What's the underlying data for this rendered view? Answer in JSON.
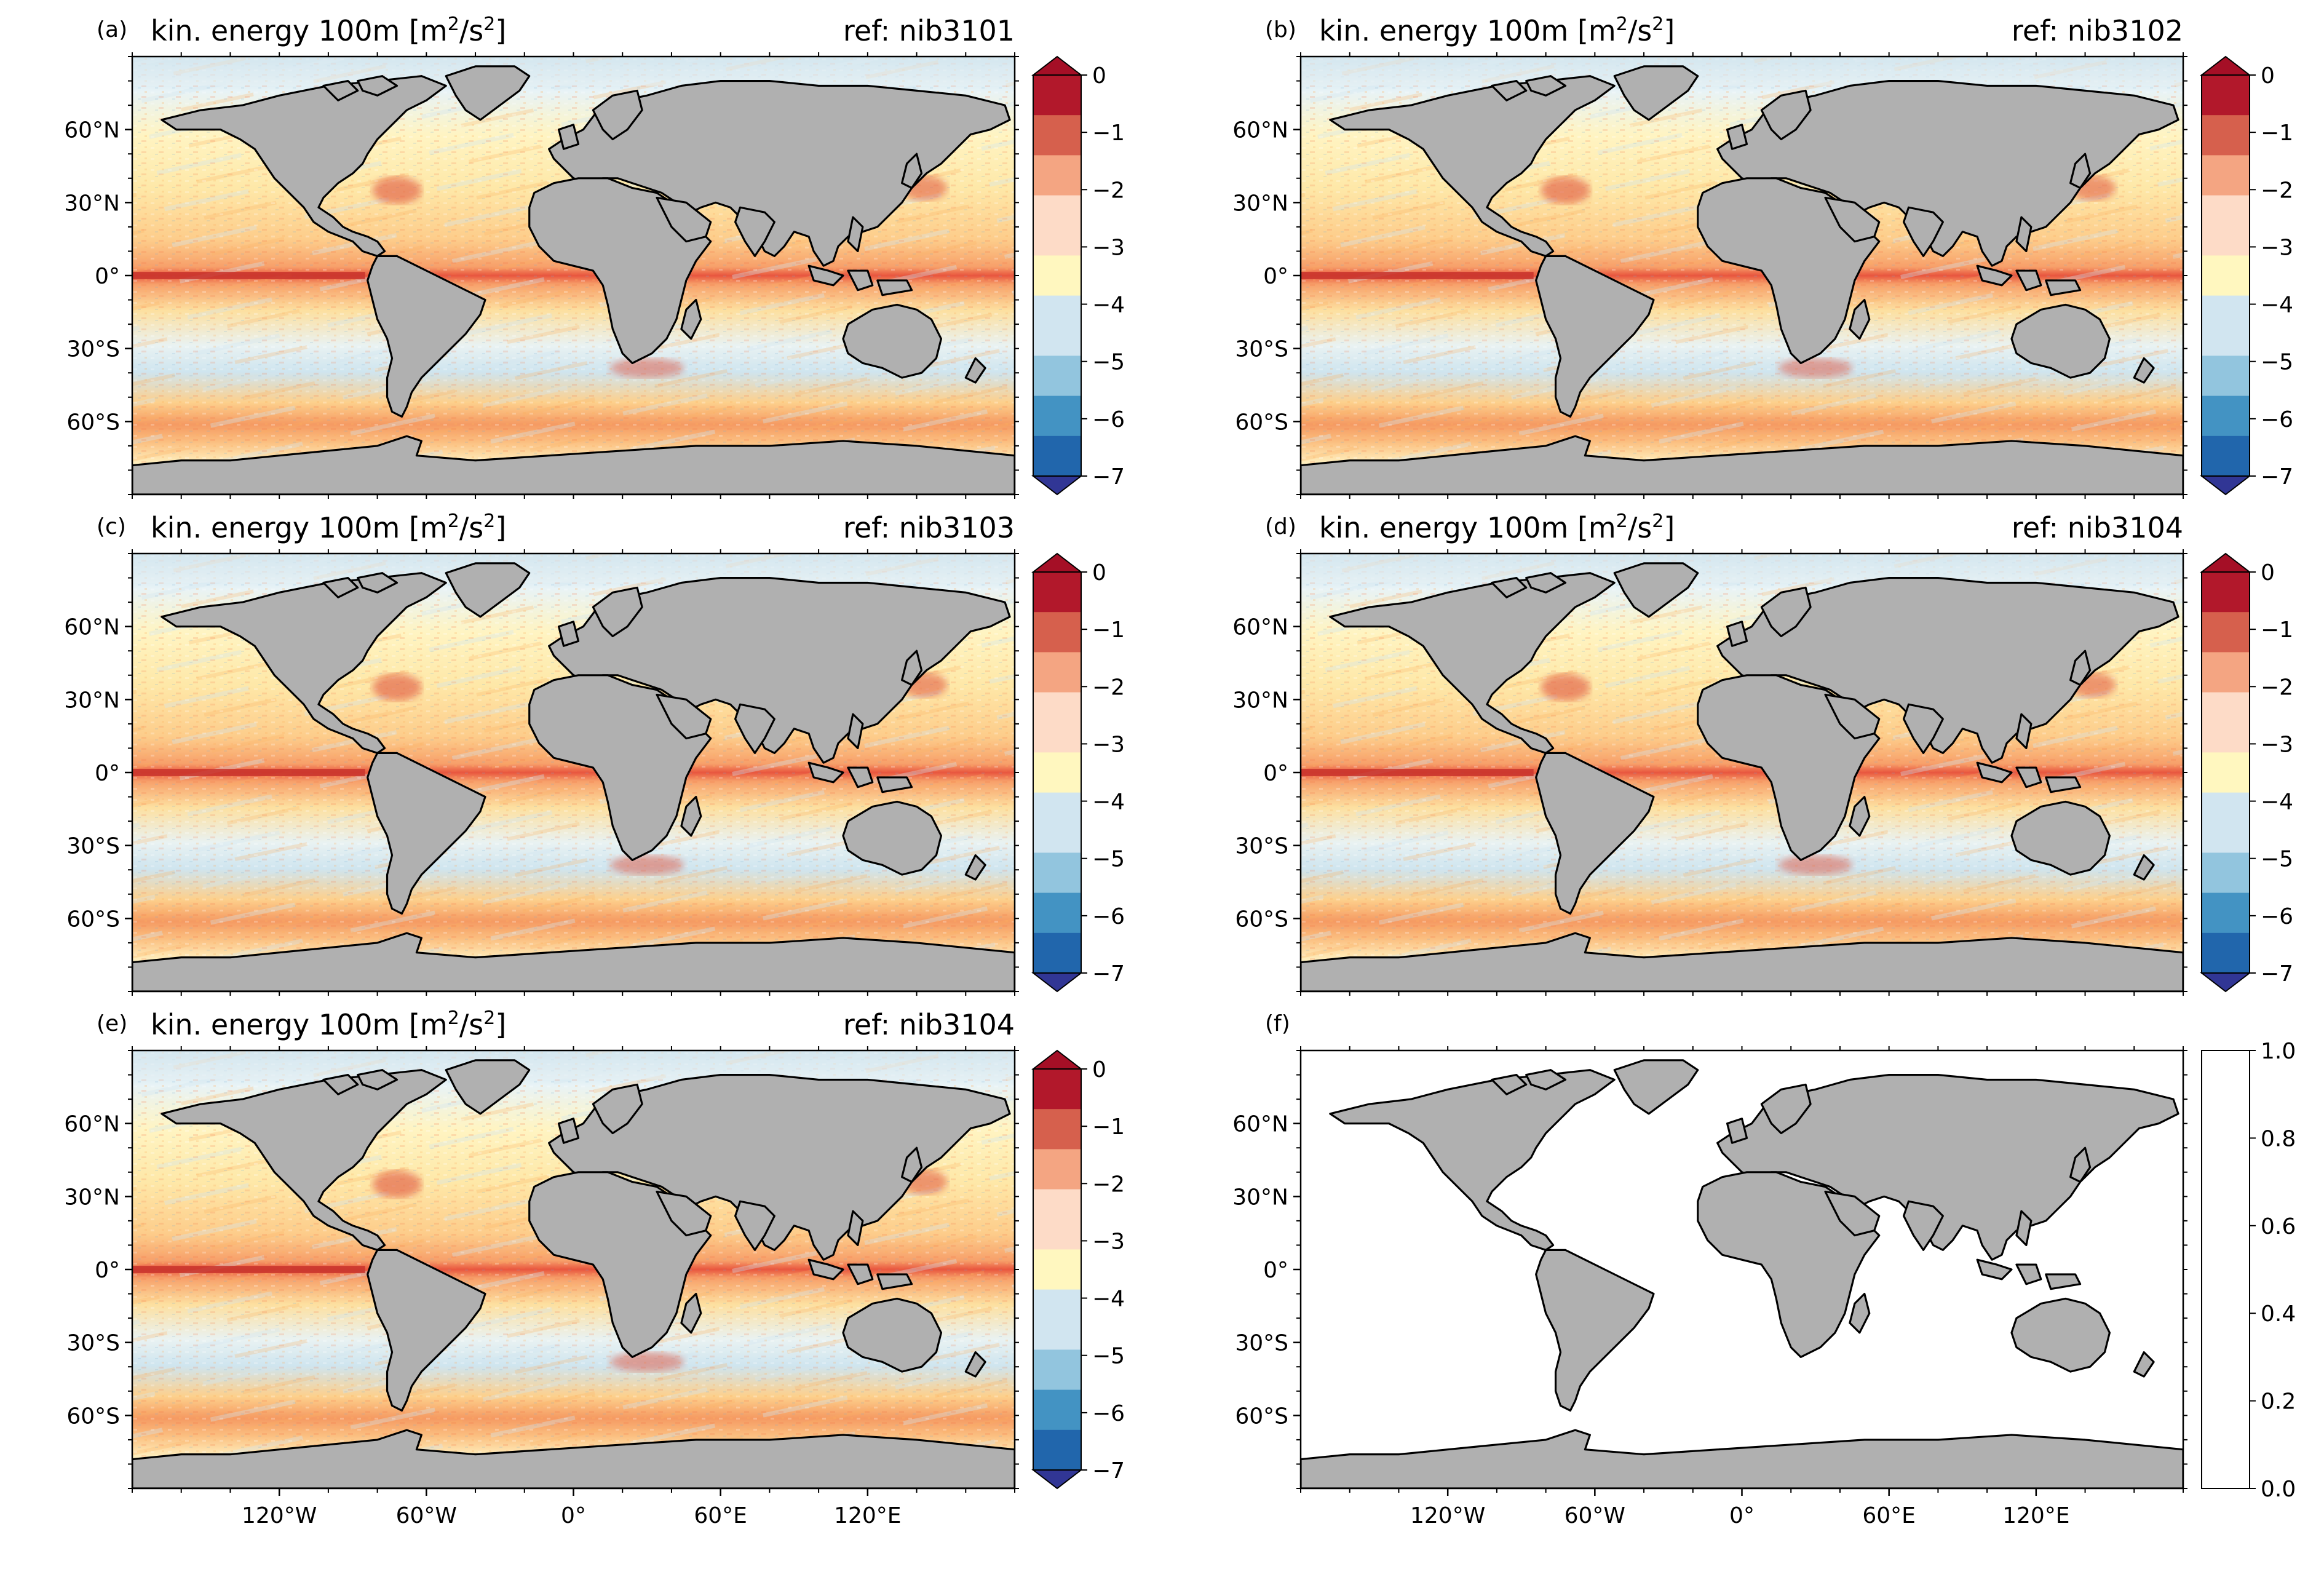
{
  "figure": {
    "panels": [
      {
        "letter": "(a)",
        "title_prefix": "kin. energy 100m [m",
        "title_sup": "2",
        "title_mid": "/s",
        "title_sup2": "2",
        "title_suffix": "]",
        "ref": "ref: nib3101",
        "has_data": true
      },
      {
        "letter": "(b)",
        "title_prefix": "kin. energy 100m [m",
        "title_sup": "2",
        "title_mid": "/s",
        "title_sup2": "2",
        "title_suffix": "]",
        "ref": "ref: nib3102",
        "has_data": true
      },
      {
        "letter": "(c)",
        "title_prefix": "kin. energy 100m [m",
        "title_sup": "2",
        "title_mid": "/s",
        "title_sup2": "2",
        "title_suffix": "]",
        "ref": "ref: nib3103",
        "has_data": true
      },
      {
        "letter": "(d)",
        "title_prefix": "kin. energy 100m [m",
        "title_sup": "2",
        "title_mid": "/s",
        "title_sup2": "2",
        "title_suffix": "]",
        "ref": "ref: nib3104",
        "has_data": true
      },
      {
        "letter": "(e)",
        "title_prefix": "kin. energy 100m [m",
        "title_sup": "2",
        "title_mid": "/s",
        "title_sup2": "2",
        "title_suffix": "]",
        "ref": "ref: nib3104",
        "has_data": true
      },
      {
        "letter": "(f)",
        "title_prefix": "",
        "title_sup": "",
        "title_mid": "",
        "title_sup2": "",
        "title_suffix": "",
        "ref": "",
        "has_data": false
      }
    ],
    "lat_ticks": [
      "60°N",
      "30°N",
      "0°",
      "30°S",
      "60°S"
    ],
    "lat_values": [
      60,
      30,
      0,
      -30,
      -60
    ],
    "lon_ticks": [
      "120°W",
      "60°W",
      "0°",
      "60°E",
      "120°E"
    ],
    "lon_values": [
      -120,
      -60,
      0,
      60,
      120
    ],
    "colorbar_ticks": [
      "0",
      "−1",
      "−2",
      "−3",
      "−4",
      "−5",
      "−6",
      "−7"
    ],
    "colorbar_values": [
      0,
      -1,
      -2,
      -3,
      -4,
      -5,
      -6,
      -7
    ],
    "empty_colorbar_ticks": [
      "1.0",
      "0.8",
      "0.6",
      "0.4",
      "0.2",
      "0.0"
    ],
    "empty_colorbar_values": [
      1.0,
      0.8,
      0.6,
      0.4,
      0.2,
      0.0
    ],
    "colormap": "RdYlBu_r",
    "colormap_stops": [
      "#b2182b",
      "#d6604d",
      "#f4a582",
      "#fddbc7",
      "#fff7bf",
      "#d1e5f0",
      "#92c5de",
      "#4393c3",
      "#2166ac"
    ],
    "land_color": "#b0b0b0",
    "coast_color": "#000000"
  },
  "chart_data": [
    {
      "type": "heatmap",
      "title": "kin. energy 100m [m²/s²]",
      "annotation": "ref: nib3101",
      "xlabel": "",
      "ylabel": "",
      "xlim": [
        -180,
        180
      ],
      "ylim": [
        -90,
        90
      ],
      "colorbar_range": [
        -7,
        0
      ],
      "colorbar_extend": "both",
      "colorbar_levels": 20
    },
    {
      "type": "heatmap",
      "title": "kin. energy 100m [m²/s²]",
      "annotation": "ref: nib3102",
      "xlabel": "",
      "ylabel": "",
      "xlim": [
        -180,
        180
      ],
      "ylim": [
        -90,
        90
      ],
      "colorbar_range": [
        -7,
        0
      ],
      "colorbar_extend": "both",
      "colorbar_levels": 20
    },
    {
      "type": "heatmap",
      "title": "kin. energy 100m [m²/s²]",
      "annotation": "ref: nib3103",
      "xlabel": "",
      "ylabel": "",
      "xlim": [
        -180,
        180
      ],
      "ylim": [
        -90,
        90
      ],
      "colorbar_range": [
        -7,
        0
      ],
      "colorbar_extend": "both",
      "colorbar_levels": 20
    },
    {
      "type": "heatmap",
      "title": "kin. energy 100m [m²/s²]",
      "annotation": "ref: nib3104",
      "xlabel": "",
      "ylabel": "",
      "xlim": [
        -180,
        180
      ],
      "ylim": [
        -90,
        90
      ],
      "colorbar_range": [
        -7,
        0
      ],
      "colorbar_extend": "both",
      "colorbar_levels": 20
    },
    {
      "type": "heatmap",
      "title": "kin. energy 100m [m²/s²]",
      "annotation": "ref: nib3104",
      "xlabel": "",
      "ylabel": "",
      "xlim": [
        -180,
        180
      ],
      "ylim": [
        -90,
        90
      ],
      "colorbar_range": [
        -7,
        0
      ],
      "colorbar_extend": "both",
      "colorbar_levels": 20
    },
    {
      "type": "heatmap",
      "title": "",
      "annotation": "",
      "xlabel": "",
      "ylabel": "",
      "xlim": [
        -180,
        180
      ],
      "ylim": [
        -90,
        90
      ],
      "colorbar_range": [
        0.0,
        1.0
      ],
      "colorbar_extend": "neither"
    }
  ]
}
